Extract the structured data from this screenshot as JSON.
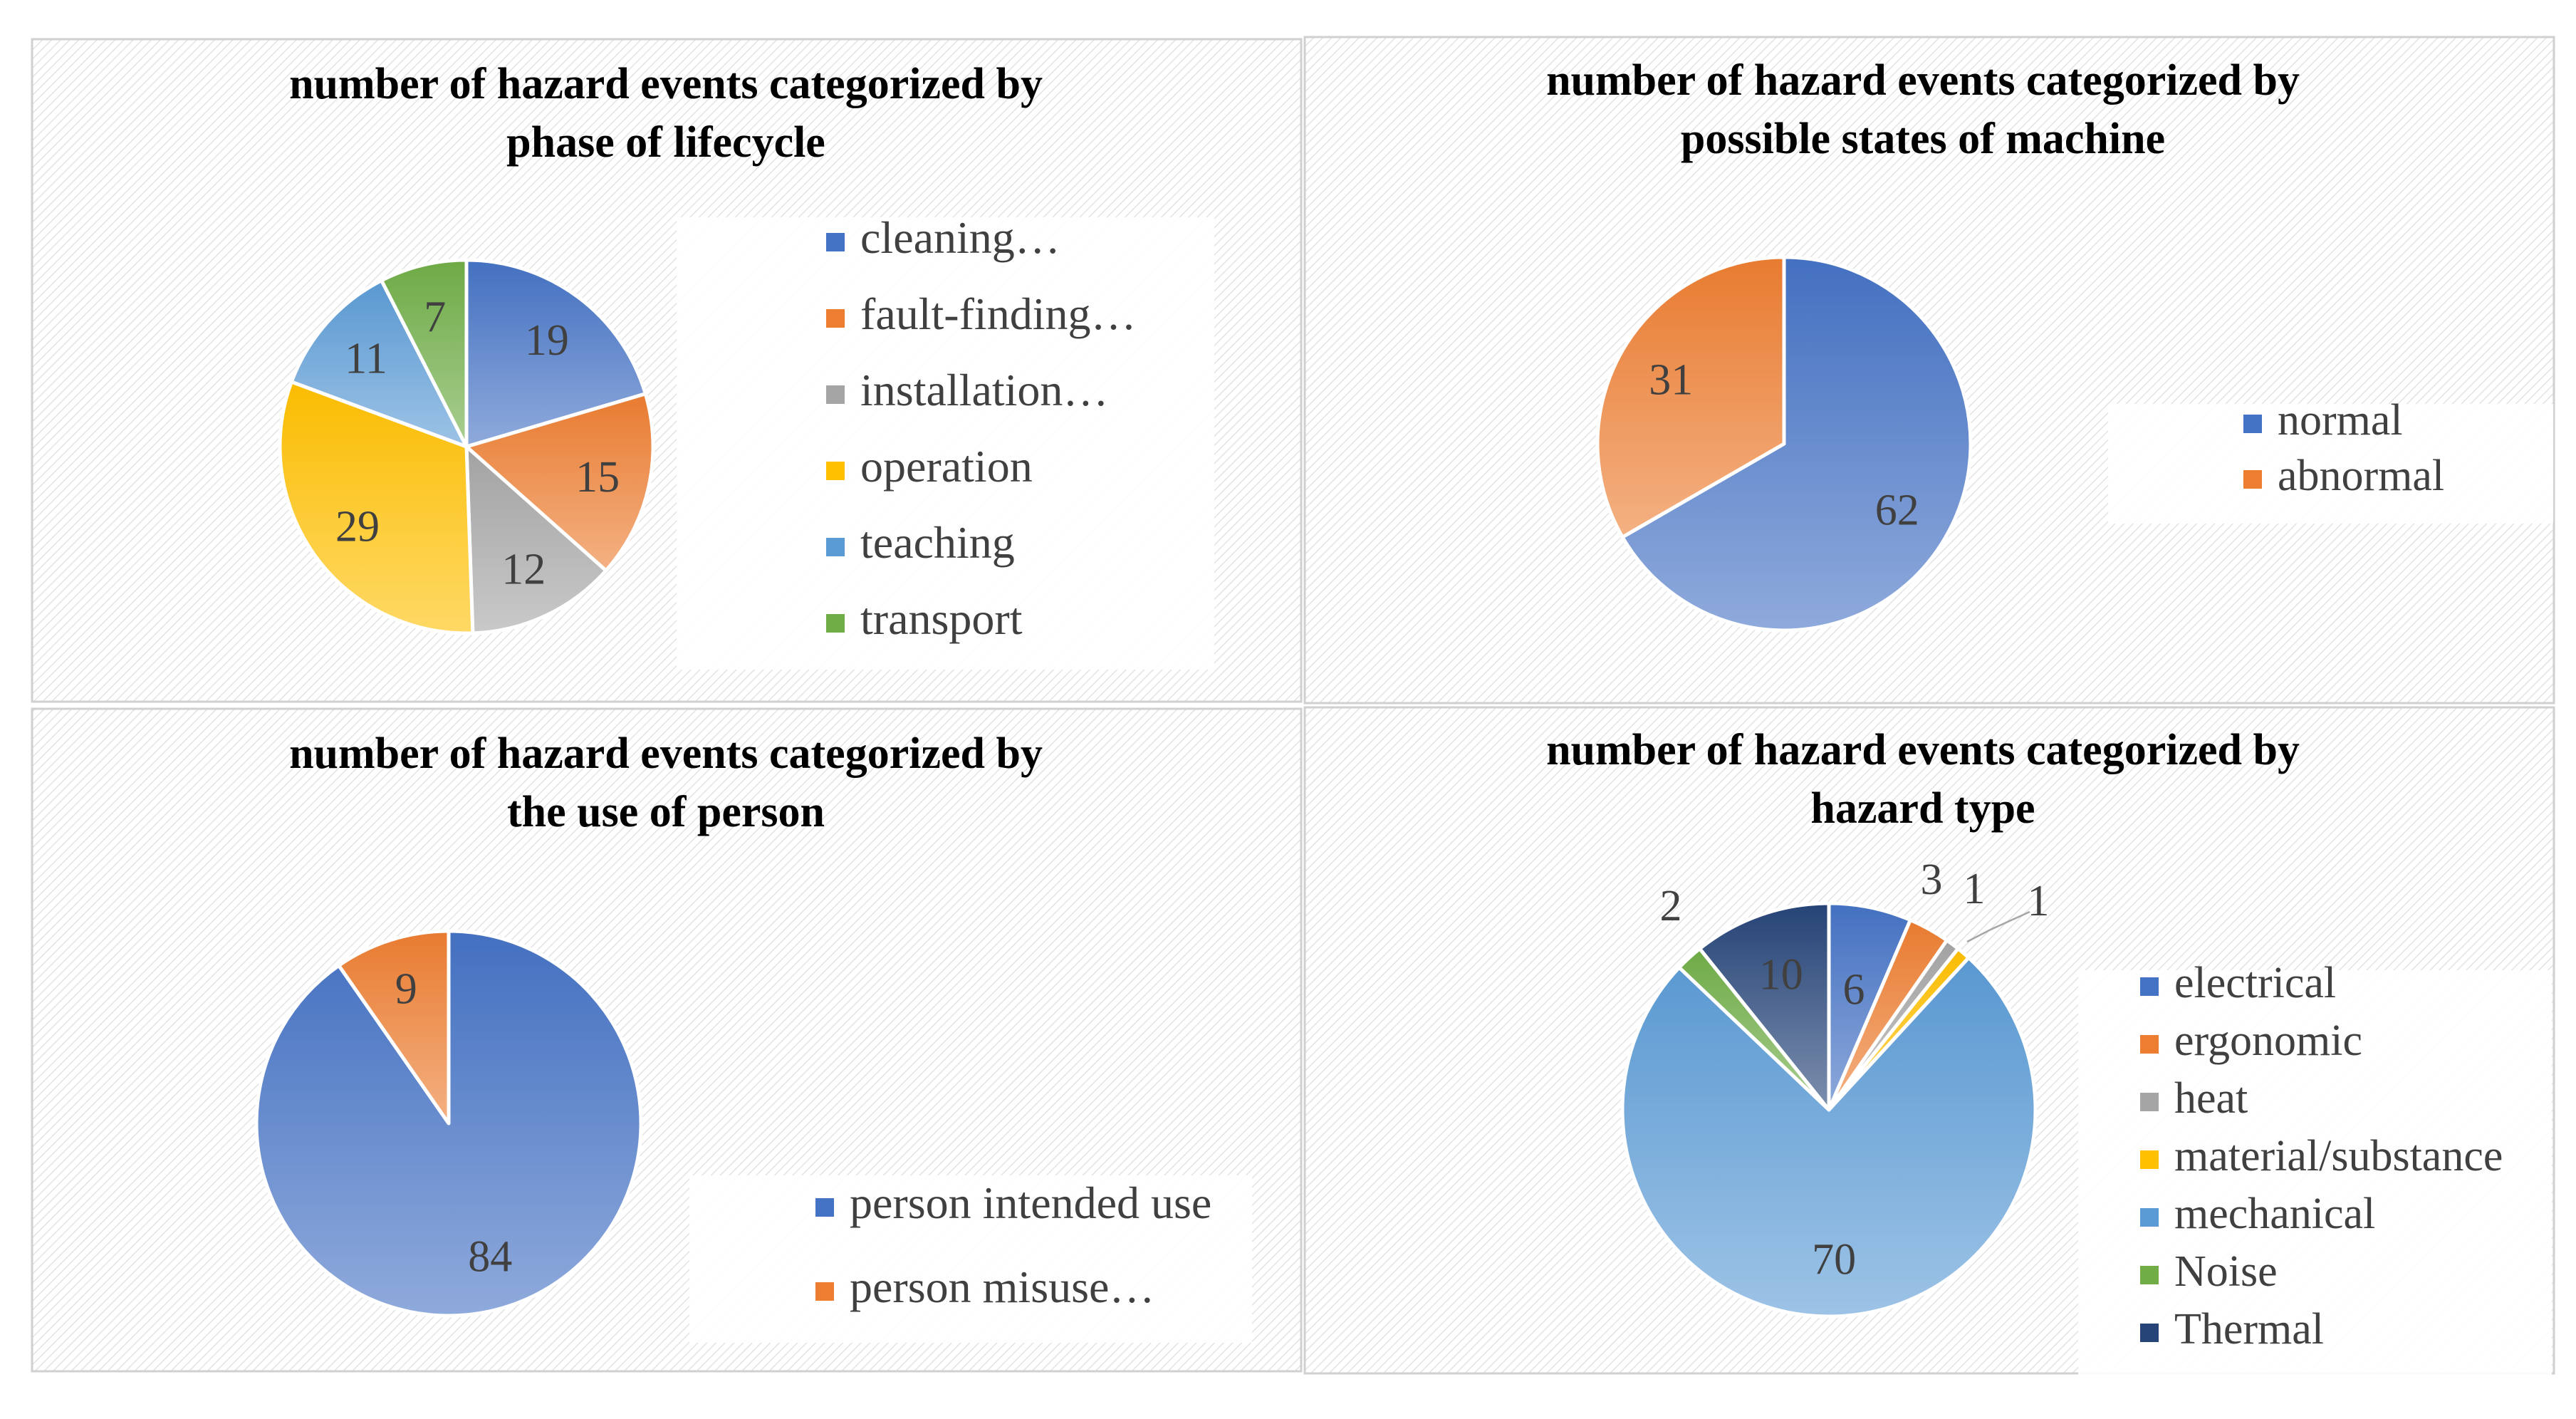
{
  "palette": {
    "blue": "#4472C4",
    "orange": "#ED7D31",
    "gray": "#A5A5A5",
    "gold": "#FFC000",
    "lightblue": "#5B9BD5",
    "green": "#70AD47",
    "navy": "#264478"
  },
  "chart_data": [
    {
      "type": "pie",
      "title": "number of hazard events categorized by phase of lifecycle",
      "title_lines": [
        "number of hazard  events categorized by",
        "phase of lifecycle"
      ],
      "legend_position": "right",
      "categories": [
        "cleaning…",
        "fault-finding…",
        "installation…",
        "operation",
        "teaching",
        "transport"
      ],
      "values": [
        19,
        15,
        12,
        29,
        11,
        7
      ],
      "colors": [
        "blue",
        "orange",
        "gray",
        "gold",
        "lightblue",
        "green"
      ]
    },
    {
      "type": "pie",
      "title": "number of hazard events categorized by possible states of machine",
      "title_lines": [
        "number of hazard  events categorized by",
        "possible states of machine"
      ],
      "legend_position": "right",
      "categories": [
        "normal",
        "abnormal"
      ],
      "values": [
        62,
        31
      ],
      "colors": [
        "blue",
        "orange"
      ]
    },
    {
      "type": "pie",
      "title": "number of hazard events categorized by the use of person",
      "title_lines": [
        "number of hazard  events categorized by",
        "the use of person"
      ],
      "legend_position": "bottom-right",
      "categories": [
        "person intended use",
        "person misuse…"
      ],
      "values": [
        84,
        9
      ],
      "colors": [
        "blue",
        "orange"
      ]
    },
    {
      "type": "pie",
      "title": "number of hazard events categorized by hazard type",
      "title_lines": [
        "number of hazard  events categorized by",
        "hazard  type"
      ],
      "legend_position": "right",
      "categories": [
        "electrical",
        "ergonomic",
        "heat",
        "material/substance",
        "mechanical",
        "Noise",
        "Thermal"
      ],
      "values": [
        6,
        3,
        1,
        1,
        70,
        2,
        10
      ],
      "colors": [
        "blue",
        "orange",
        "gray",
        "gold",
        "lightblue",
        "green",
        "navy"
      ]
    }
  ]
}
